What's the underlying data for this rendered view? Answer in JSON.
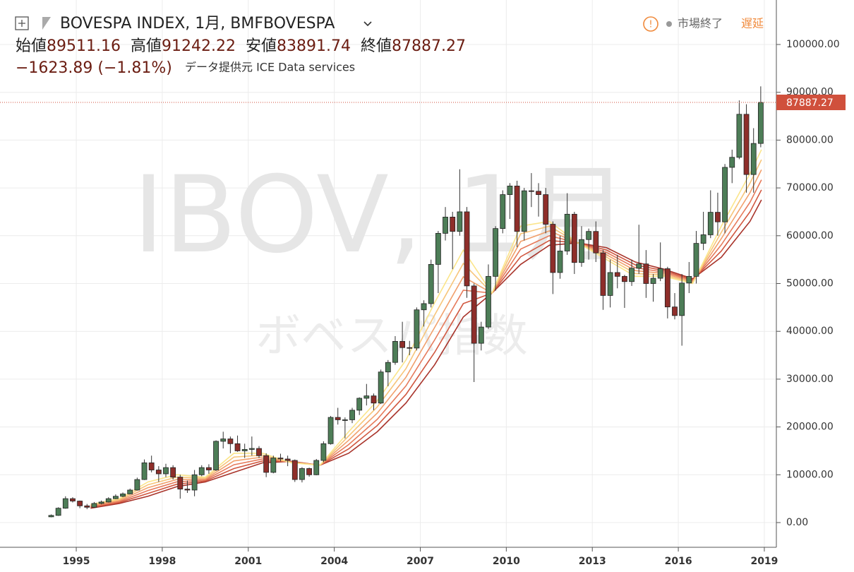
{
  "chart_data": {
    "type": "candlestick",
    "title": "BOVESPA INDEX, 1月, BMFBOVESPA",
    "ohlc_header": [
      {
        "label": "始値",
        "value": 89511.16
      },
      {
        "label": "高値",
        "value": 91242.22
      },
      {
        "label": "安値",
        "value": 83891.74
      },
      {
        "label": "終値",
        "value": 87887.27
      }
    ],
    "change": "−1623.89 (−1.81%)",
    "source": "データ提供元 ICE Data services",
    "status": "市場終了",
    "delay": "遅延",
    "watermark": "IBOV, 1月",
    "watermark_sub": "ボベスパ指数",
    "last_price": 87887.27,
    "up_color": "#4d7d57",
    "down_color": "#8e2e2a",
    "last_color": "#d0503c",
    "grid": true,
    "xlim": [
      1992.34,
      2019.42
    ],
    "xticks": [
      1995,
      1998,
      2001,
      2004,
      2007,
      2010,
      2013,
      2016,
      2019
    ],
    "ylim": [
      -5170,
      109306
    ],
    "yticks": [
      {
        "value": 0,
        "label": "0.00"
      },
      {
        "value": 10000,
        "label": "10000.00"
      },
      {
        "value": 20000,
        "label": "20000.00"
      },
      {
        "value": 30000,
        "label": "30000.00"
      },
      {
        "value": 40000,
        "label": "40000.00"
      },
      {
        "value": 50000,
        "label": "50000.00"
      },
      {
        "value": 60000,
        "label": "60000.00"
      },
      {
        "value": 70000,
        "label": "70000.00"
      },
      {
        "value": 80000,
        "label": "80000.00"
      },
      {
        "value": 90000,
        "label": "90000.00"
      },
      {
        "value": 100000,
        "label": "100000.00"
      }
    ],
    "x": [
      1994.125,
      1994.375,
      1994.625,
      1994.875,
      1995.125,
      1995.375,
      1995.625,
      1995.875,
      1996.125,
      1996.375,
      1996.625,
      1996.875,
      1997.125,
      1997.375,
      1997.625,
      1997.875,
      1998.125,
      1998.375,
      1998.625,
      1998.875,
      1999.125,
      1999.375,
      1999.625,
      1999.875,
      2000.125,
      2000.375,
      2000.625,
      2000.875,
      2001.125,
      2001.375,
      2001.625,
      2001.875,
      2002.125,
      2002.375,
      2002.625,
      2002.875,
      2003.125,
      2003.375,
      2003.625,
      2003.875,
      2004.125,
      2004.375,
      2004.625,
      2004.875,
      2005.125,
      2005.375,
      2005.625,
      2005.875,
      2006.125,
      2006.375,
      2006.625,
      2006.875,
      2007.125,
      2007.375,
      2007.625,
      2007.875,
      2008.125,
      2008.375,
      2008.625,
      2008.875,
      2009.125,
      2009.375,
      2009.625,
      2009.875,
      2010.125,
      2010.375,
      2010.625,
      2010.875,
      2011.125,
      2011.375,
      2011.625,
      2011.875,
      2012.125,
      2012.375,
      2012.625,
      2012.875,
      2013.125,
      2013.375,
      2013.625,
      2013.875,
      2014.125,
      2014.375,
      2014.625,
      2014.875,
      2015.125,
      2015.375,
      2015.625,
      2015.875,
      2016.125,
      2016.375,
      2016.625,
      2016.875,
      2017.125,
      2017.375,
      2017.625,
      2017.875,
      2018.125,
      2018.375,
      2018.625,
      2018.875
    ],
    "open": [
      1200,
      1500,
      3000,
      5000,
      4500,
      3500,
      3200,
      4000,
      4300,
      5000,
      5500,
      6000,
      6800,
      9000,
      12500,
      11000,
      10200,
      11500,
      9500,
      7000,
      6800,
      10000,
      11500,
      11000,
      17000,
      17500,
      16500,
      15000,
      15300,
      15500,
      14000,
      10500,
      13500,
      13300,
      13000,
      9000,
      11300,
      10000,
      13000,
      16500,
      22000,
      21500,
      21500,
      23500,
      26000,
      26500,
      25000,
      31500,
      33500,
      37900,
      36600,
      36500,
      44500,
      45800,
      54000,
      60500,
      63900,
      60900,
      65000,
      49500,
      37500,
      40900,
      51500,
      61500,
      68600,
      70400,
      60900,
      69400,
      69300,
      68600,
      62400,
      52300,
      56800,
      64500,
      54400,
      59200,
      60900,
      56400,
      47500,
      52300,
      51500,
      50400,
      53200,
      54100,
      50000,
      51100,
      53100,
      45100,
      43300,
      50100,
      51500,
      58400,
      60200,
      64900,
      62900,
      74300,
      76400,
      85400,
      72800,
      79300
    ],
    "high": [
      1700,
      3200,
      5500,
      5300,
      4600,
      3900,
      4300,
      4600,
      5300,
      5900,
      6300,
      7100,
      9400,
      13200,
      14000,
      11800,
      12300,
      12000,
      10000,
      8800,
      11000,
      12000,
      12200,
      17200,
      19000,
      18000,
      18200,
      16500,
      18000,
      16000,
      14500,
      14000,
      14400,
      14000,
      13200,
      11600,
      11500,
      13300,
      17000,
      22300,
      24000,
      22000,
      24000,
      26200,
      29000,
      27000,
      32000,
      34000,
      39000,
      42000,
      38000,
      45000,
      46500,
      55000,
      61000,
      66000,
      65000,
      73900,
      66000,
      50000,
      42000,
      54000,
      62000,
      69500,
      71000,
      71500,
      70000,
      73100,
      71000,
      70000,
      63000,
      60000,
      68900,
      65000,
      62000,
      61500,
      63000,
      57000,
      55000,
      56000,
      51800,
      55000,
      62300,
      57000,
      52000,
      58600,
      53500,
      48000,
      52000,
      54500,
      61000,
      65000,
      69500,
      69000,
      75000,
      78000,
      88300,
      87500,
      82500,
      91242.22
    ],
    "low": [
      1100,
      1400,
      2900,
      4200,
      3000,
      2800,
      3100,
      3800,
      4200,
      4900,
      5300,
      5900,
      6700,
      8900,
      10500,
      8500,
      9500,
      9000,
      5000,
      6200,
      5500,
      9700,
      10200,
      10800,
      15500,
      14500,
      14800,
      13500,
      14000,
      13500,
      9500,
      10300,
      12800,
      11800,
      8500,
      8400,
      9600,
      9900,
      12600,
      16300,
      20500,
      17600,
      20800,
      22500,
      24500,
      23500,
      24800,
      28500,
      33000,
      33500,
      35000,
      36000,
      41000,
      45000,
      48000,
      59000,
      53000,
      60000,
      47000,
      29400,
      36000,
      40500,
      48500,
      60500,
      63500,
      57600,
      59000,
      66000,
      64000,
      60500,
      47800,
      51000,
      56000,
      52000,
      53500,
      55000,
      54500,
      44500,
      45000,
      49000,
      44900,
      49500,
      52000,
      47000,
      46200,
      50500,
      42700,
      42500,
      37000,
      48000,
      50000,
      57000,
      59500,
      60000,
      60500,
      71000,
      76000,
      69000,
      69000,
      78500
    ],
    "close": [
      1500,
      3000,
      5000,
      4500,
      3500,
      3200,
      4000,
      4300,
      5000,
      5500,
      6000,
      6800,
      9000,
      12500,
      11000,
      10200,
      11500,
      9500,
      7000,
      6800,
      10000,
      11500,
      11000,
      17000,
      17500,
      16500,
      15000,
      15300,
      15500,
      14000,
      10500,
      13500,
      13300,
      13000,
      9000,
      11300,
      10000,
      13000,
      16500,
      22000,
      21500,
      21500,
      23500,
      26000,
      26500,
      25000,
      31500,
      33500,
      37900,
      36600,
      36500,
      44500,
      45800,
      54000,
      60500,
      63900,
      60900,
      65000,
      49500,
      37500,
      40900,
      51500,
      61500,
      68600,
      70400,
      60900,
      69400,
      69300,
      68600,
      62400,
      52300,
      56800,
      64500,
      54400,
      59200,
      60900,
      56400,
      47500,
      52300,
      51500,
      50400,
      53200,
      54100,
      50000,
      51100,
      53100,
      45100,
      43300,
      50100,
      51500,
      58400,
      60200,
      64900,
      62900,
      74300,
      76400,
      85400,
      72800,
      79300,
      87887.27
    ],
    "overlay_x": [
      1995.5,
      1996.5,
      1997.5,
      1998.5,
      1999.5,
      2000.5,
      2001.5,
      2002.5,
      2003.5,
      2004.5,
      2005.5,
      2006.5,
      2007.5,
      2008.5,
      2009.5,
      2010.5,
      2011.5,
      2012.5,
      2013.5,
      2014.5,
      2015.5,
      2016.5,
      2017.5,
      2018.5,
      2018.9
    ],
    "overlays": [
      {
        "color": "#fbe58a",
        "values": [
          3800,
          5000,
          8500,
          10000,
          9500,
          14500,
          14500,
          12500,
          12000,
          19000,
          25500,
          34000,
          46000,
          57000,
          48000,
          62000,
          63000,
          58500,
          55000,
          51500,
          51500,
          50000,
          62000,
          73000,
          78000
        ]
      },
      {
        "color": "#f7c57a",
        "values": [
          3640,
          4800,
          7900,
          9500,
          9300,
          13700,
          14100,
          12560,
          12000,
          18100,
          24200,
          32200,
          43400,
          54200,
          48000,
          60400,
          62000,
          58500,
          55500,
          52100,
          51800,
          50200,
          60700,
          71000,
          75900
        ]
      },
      {
        "color": "#f1a06c",
        "values": [
          3480,
          4600,
          7300,
          9000,
          9100,
          12900,
          13700,
          12620,
          12000,
          17200,
          22900,
          30400,
          40800,
          51400,
          48000,
          58800,
          61000,
          58500,
          56000,
          52700,
          52100,
          50400,
          59400,
          69000,
          73800
        ]
      },
      {
        "color": "#e67b5c",
        "values": [
          3320,
          4400,
          6700,
          8500,
          8900,
          12100,
          13300,
          12680,
          12000,
          16300,
          21600,
          28600,
          38200,
          48600,
          48000,
          57200,
          60000,
          58500,
          56500,
          53300,
          52400,
          50600,
          58100,
          67000,
          71700
        ]
      },
      {
        "color": "#d1573f",
        "values": [
          3160,
          4200,
          6100,
          8000,
          8700,
          11300,
          12900,
          12740,
          12000,
          15400,
          20300,
          26800,
          35600,
          45800,
          48000,
          55600,
          59000,
          58500,
          57000,
          53900,
          52700,
          50800,
          56800,
          65000,
          69600
        ]
      },
      {
        "color": "#a8332a",
        "values": [
          3000,
          4000,
          5500,
          7500,
          8500,
          10500,
          12500,
          12800,
          12000,
          14500,
          19000,
          25000,
          33000,
          43000,
          48000,
          54000,
          58000,
          58500,
          57500,
          54500,
          53000,
          51000,
          55500,
          63000,
          67500
        ]
      }
    ]
  }
}
